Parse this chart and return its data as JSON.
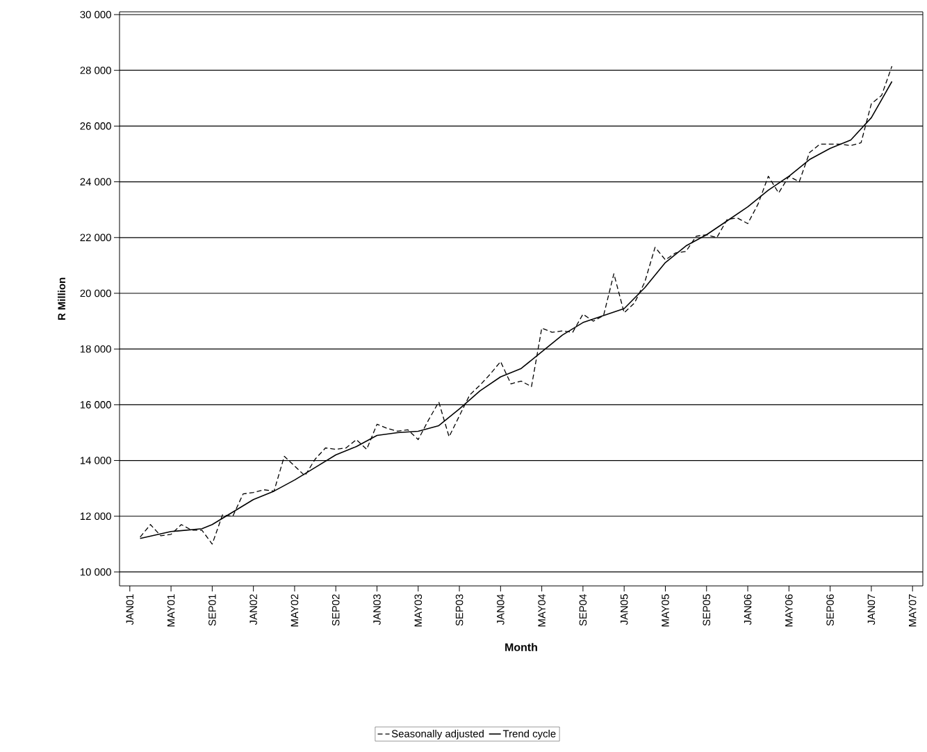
{
  "chart_data": {
    "type": "line",
    "xlabel": "Month",
    "ylabel": "R Million",
    "xlim": [
      "2000-12",
      "2007-06"
    ],
    "ylim": [
      9500,
      30100
    ],
    "xticks": [
      {
        "value": "2001-01",
        "label": "JAN01"
      },
      {
        "value": "2001-05",
        "label": "MAY01"
      },
      {
        "value": "2001-09",
        "label": "SEP01"
      },
      {
        "value": "2002-01",
        "label": "JAN02"
      },
      {
        "value": "2002-05",
        "label": "MAY02"
      },
      {
        "value": "2002-09",
        "label": "SEP02"
      },
      {
        "value": "2003-01",
        "label": "JAN03"
      },
      {
        "value": "2003-05",
        "label": "MAY03"
      },
      {
        "value": "2003-09",
        "label": "SEP03"
      },
      {
        "value": "2004-01",
        "label": "JAN04"
      },
      {
        "value": "2004-05",
        "label": "MAY04"
      },
      {
        "value": "2004-09",
        "label": "SEP04"
      },
      {
        "value": "2005-01",
        "label": "JAN05"
      },
      {
        "value": "2005-05",
        "label": "MAY05"
      },
      {
        "value": "2005-09",
        "label": "SEP05"
      },
      {
        "value": "2006-01",
        "label": "JAN06"
      },
      {
        "value": "2006-05",
        "label": "MAY06"
      },
      {
        "value": "2006-09",
        "label": "SEP06"
      },
      {
        "value": "2007-01",
        "label": "JAN07"
      },
      {
        "value": "2007-05",
        "label": "MAY07"
      }
    ],
    "yticks": [
      {
        "value": 10000,
        "label": "10 000"
      },
      {
        "value": 12000,
        "label": "12 000"
      },
      {
        "value": 14000,
        "label": "14 000"
      },
      {
        "value": 16000,
        "label": "16 000"
      },
      {
        "value": 18000,
        "label": "18 000"
      },
      {
        "value": 20000,
        "label": "20 000"
      },
      {
        "value": 22000,
        "label": "22 000"
      },
      {
        "value": 24000,
        "label": "24 000"
      },
      {
        "value": 26000,
        "label": "26 000"
      },
      {
        "value": 28000,
        "label": "28 000"
      },
      {
        "value": 30000,
        "label": "30 000"
      }
    ],
    "grid": "y",
    "legend": "bottom",
    "series": [
      {
        "name": "Seasonally adjusted",
        "color": "#000000",
        "line_style": "dashed",
        "x": [
          "2001-02",
          "2001-03",
          "2001-04",
          "2001-05",
          "2001-06",
          "2001-07",
          "2001-08",
          "2001-09",
          "2001-10",
          "2001-11",
          "2001-12",
          "2002-01",
          "2002-02",
          "2002-03",
          "2002-04",
          "2002-05",
          "2002-06",
          "2002-07",
          "2002-08",
          "2002-09",
          "2002-10",
          "2002-11",
          "2002-12",
          "2003-01",
          "2003-02",
          "2003-03",
          "2003-04",
          "2003-05",
          "2003-06",
          "2003-07",
          "2003-08",
          "2003-09",
          "2003-10",
          "2003-11",
          "2003-12",
          "2004-01",
          "2004-02",
          "2004-03",
          "2004-04",
          "2004-05",
          "2004-06",
          "2004-07",
          "2004-08",
          "2004-09",
          "2004-10",
          "2004-11",
          "2004-12",
          "2005-01",
          "2005-02",
          "2005-03",
          "2005-04",
          "2005-05",
          "2005-06",
          "2005-07",
          "2005-08",
          "2005-09",
          "2005-10",
          "2005-11",
          "2005-12",
          "2006-01",
          "2006-02",
          "2006-03",
          "2006-04",
          "2006-05",
          "2006-06",
          "2006-07",
          "2006-08",
          "2006-09",
          "2006-10",
          "2006-11",
          "2006-12",
          "2007-01",
          "2007-02",
          "2007-03"
        ],
        "values": [
          11250,
          11700,
          11300,
          11350,
          11700,
          11500,
          11500,
          11000,
          12050,
          12000,
          12800,
          12850,
          12950,
          12900,
          14150,
          13800,
          13450,
          14050,
          14450,
          14400,
          14450,
          14750,
          14400,
          15300,
          15150,
          15050,
          15100,
          14750,
          15450,
          16100,
          14850,
          15600,
          16350,
          16700,
          17100,
          17550,
          16750,
          16850,
          16650,
          18750,
          18600,
          18650,
          18600,
          19250,
          19000,
          19200,
          20700,
          19300,
          19650,
          20400,
          21650,
          21200,
          21450,
          21500,
          22050,
          22100,
          22000,
          22650,
          22700,
          22500,
          23200,
          24200,
          23600,
          24200,
          24000,
          25050,
          25350,
          25350,
          25350,
          25300,
          25400,
          26800,
          27100,
          28150
        ]
      },
      {
        "name": "Trend cycle",
        "color": "#000000",
        "line_style": "solid",
        "x": [
          "2001-02",
          "2001-05",
          "2001-08",
          "2001-09",
          "2001-11",
          "2002-01",
          "2002-03",
          "2002-05",
          "2002-07",
          "2002-09",
          "2002-11",
          "2003-01",
          "2003-03",
          "2003-05",
          "2003-07",
          "2003-09",
          "2003-11",
          "2004-01",
          "2004-03",
          "2004-05",
          "2004-07",
          "2004-09",
          "2004-11",
          "2005-01",
          "2005-03",
          "2005-05",
          "2005-07",
          "2005-09",
          "2005-11",
          "2006-01",
          "2006-03",
          "2006-05",
          "2006-07",
          "2006-09",
          "2006-11",
          "2007-01",
          "2007-03"
        ],
        "values": [
          11200,
          11450,
          11550,
          11700,
          12150,
          12600,
          12900,
          13300,
          13750,
          14200,
          14500,
          14900,
          15000,
          15050,
          15250,
          15850,
          16500,
          17000,
          17300,
          17900,
          18500,
          18950,
          19200,
          19450,
          20200,
          21100,
          21700,
          22100,
          22600,
          23100,
          23700,
          24200,
          24800,
          25200,
          25500,
          26300,
          27600
        ]
      }
    ]
  }
}
